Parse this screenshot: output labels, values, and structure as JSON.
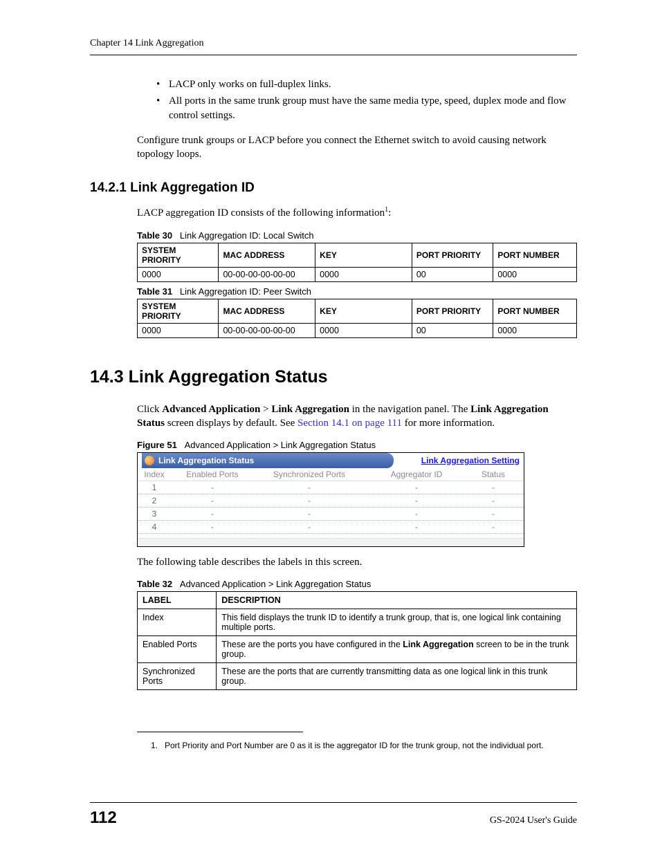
{
  "header": {
    "chapter": "Chapter 14 Link Aggregation"
  },
  "bullets": [
    "LACP only works on full-duplex links.",
    "All ports in the same trunk group must have the same media type, speed, duplex mode and flow control settings."
  ],
  "intro_para": "Configure trunk groups or LACP before you connect the Ethernet switch to avoid causing network topology loops.",
  "section_14_2_1": {
    "heading": "14.2.1  Link Aggregation ID",
    "lead_before": "LACP aggregation ID consists of the following information",
    "lead_after": ":",
    "sup": "1"
  },
  "table30": {
    "caption_label": "Table 30",
    "caption_text": "Link Aggregation ID: Local Switch",
    "columns": [
      "SYSTEM PRIORITY",
      "MAC ADDRESS",
      "KEY",
      "PORT PRIORITY",
      "PORT NUMBER"
    ],
    "row": [
      "0000",
      "00-00-00-00-00-00",
      "0000",
      "00",
      "0000"
    ]
  },
  "table31": {
    "caption_label": "Table 31",
    "caption_text": "Link Aggregation ID: Peer Switch",
    "columns": [
      "SYSTEM PRIORITY",
      "MAC ADDRESS",
      "KEY",
      "PORT PRIORITY",
      "PORT NUMBER"
    ],
    "row": [
      "0000",
      "00-00-00-00-00-00",
      "0000",
      "00",
      "0000"
    ]
  },
  "section_14_3": {
    "heading": "14.3  Link Aggregation Status",
    "p1_a": "Click ",
    "p1_b": "Advanced Application",
    "p1_c": " > ",
    "p1_d": "Link Aggregation",
    "p1_e": " in the navigation panel. The ",
    "p1_f": "Link Aggregation Status",
    "p1_g": " screen displays by default. See ",
    "p1_link": "Section 14.1 on page 111",
    "p1_h": " for more information."
  },
  "figure51": {
    "caption_label": "Figure 51",
    "caption_text": "Advanced Application > Link Aggregation Status",
    "title_left": "Link Aggregation Status",
    "title_right": "Link Aggregation Setting",
    "columns": [
      "Index",
      "Enabled Ports",
      "Synchronized Ports",
      "Aggregator ID",
      "Status"
    ],
    "rows": [
      {
        "idx": "1",
        "a": "-",
        "b": "-",
        "c": "-",
        "d": "-"
      },
      {
        "idx": "2",
        "a": "-",
        "b": "-",
        "c": "-",
        "d": "-"
      },
      {
        "idx": "3",
        "a": "-",
        "b": "-",
        "c": "-",
        "d": "-"
      },
      {
        "idx": "4",
        "a": "-",
        "b": "-",
        "c": "-",
        "d": "-"
      }
    ]
  },
  "post_figure": "The following table describes the labels in this screen.",
  "table32": {
    "caption_label": "Table 32",
    "caption_text": "Advanced Application > Link Aggregation Status",
    "columns": [
      "LABEL",
      "DESCRIPTION"
    ],
    "rows": [
      {
        "label": "Index",
        "desc": "This field displays the trunk ID to identify a trunk group, that is, one logical link containing multiple ports."
      },
      {
        "label": "Enabled Ports",
        "desc_a": "These are the ports you have configured in the ",
        "desc_bold": "Link Aggregation",
        "desc_b": " screen to be in the trunk group."
      },
      {
        "label": "Synchronized Ports",
        "desc": "These are the ports that are currently transmitting data as one logical link in this trunk group."
      }
    ]
  },
  "footnote": {
    "num": "1.",
    "text": "Port Priority and Port Number are 0 as it is the aggregator ID for the trunk group, not the individual port."
  },
  "footer": {
    "page_number": "112",
    "guide": "GS-2024 User's Guide"
  }
}
